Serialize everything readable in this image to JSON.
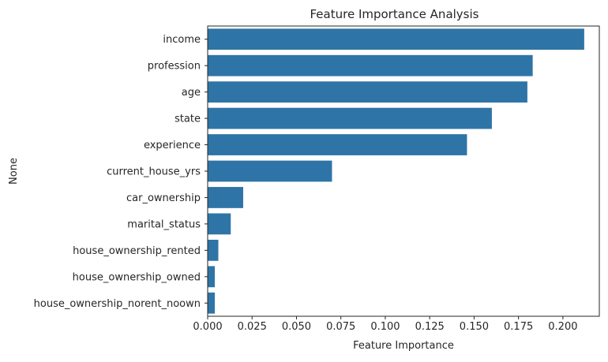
{
  "chart_data": {
    "type": "bar",
    "orientation": "horizontal",
    "title": "Feature Importance Analysis",
    "xlabel": "Feature Importance",
    "ylabel": "None",
    "categories": [
      "income",
      "profession",
      "age",
      "state",
      "experience",
      "current_house_yrs",
      "car_ownership",
      "marital_status",
      "house_ownership_rented",
      "house_ownership_owned",
      "house_ownership_norent_noown"
    ],
    "values": [
      0.212,
      0.183,
      0.18,
      0.16,
      0.146,
      0.07,
      0.02,
      0.013,
      0.006,
      0.004,
      0.004
    ],
    "xlim": [
      0,
      0.2205
    ],
    "xticks": [
      "0.000",
      "0.025",
      "0.050",
      "0.075",
      "0.100",
      "0.125",
      "0.150",
      "0.175",
      "0.200"
    ],
    "grid": false,
    "legend": "none",
    "bar_color": "#2f74a6"
  }
}
